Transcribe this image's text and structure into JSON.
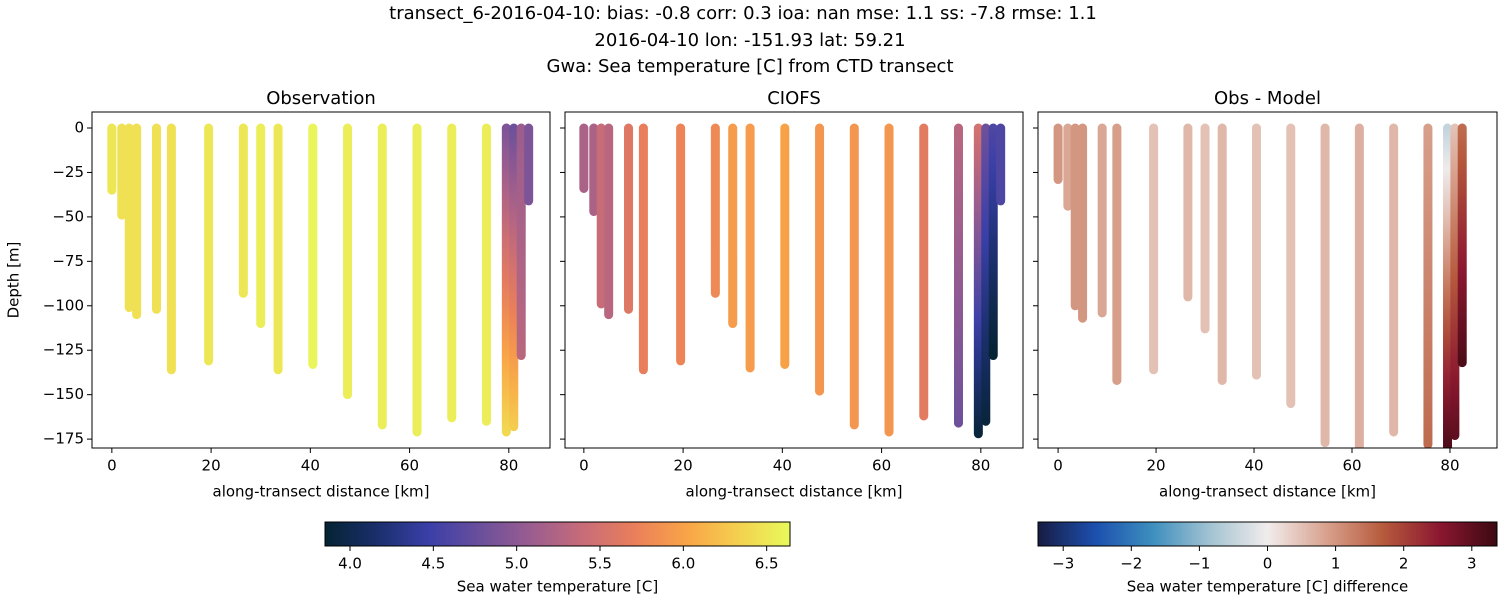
{
  "suptitle": [
    "transect_6-2016-04-10: bias: -0.8  corr: 0.3  ioa: nan  mse: 1.1  ss: -7.8  rmse: 1.1",
    "2016-04-10 lon: -151.93 lat: 59.21",
    "Gwa: Sea temperature [C] from CTD transect"
  ],
  "chart_data": [
    {
      "type": "cast",
      "title": "Observation",
      "xlabel": "along-transect distance [km]",
      "ylabel": "Depth [m]",
      "cmap": "thermal",
      "xlim": [
        -4,
        88.3
      ],
      "ylim": [
        -180,
        9
      ],
      "xticks": [
        0,
        20,
        40,
        60,
        80
      ],
      "yticks": [
        0,
        {
          "value": -25,
          "label": "−25"
        },
        {
          "value": -50,
          "label": "−50"
        },
        {
          "value": -75,
          "label": "−75"
        },
        {
          "value": -100,
          "label": "−100"
        },
        {
          "value": -125,
          "label": "−125"
        },
        {
          "value": -150,
          "label": "−150"
        },
        {
          "value": -175,
          "label": "−175"
        }
      ],
      "x": [
        0,
        2,
        3.5,
        5,
        9,
        12,
        19.5,
        26.5,
        30,
        33.5,
        40.5,
        47.5,
        54.5,
        61.5,
        68.5,
        75.5,
        79.5,
        81,
        82.5,
        84
      ],
      "depth": [
        -35,
        -49,
        -101,
        -105,
        -102,
        -136,
        -131,
        -93,
        -110,
        -136,
        -133,
        -150,
        -167,
        -171,
        -163,
        -165,
        -171,
        -168,
        -128,
        -41
      ],
      "top_values": [
        6.5,
        6.45,
        6.45,
        6.45,
        6.45,
        6.45,
        6.5,
        6.5,
        6.55,
        6.5,
        6.6,
        6.55,
        6.55,
        6.55,
        6.55,
        6.55,
        4.9,
        4.8,
        5.1,
        4.9
      ],
      "bottom_values": [
        6.5,
        6.45,
        6.45,
        6.45,
        6.45,
        6.45,
        6.5,
        6.5,
        6.55,
        6.5,
        6.6,
        6.55,
        6.55,
        6.55,
        6.55,
        6.55,
        6.4,
        6.3,
        5.3,
        4.9
      ]
    },
    {
      "type": "cast",
      "title": "CIOFS",
      "xlabel": "along-transect distance [km]",
      "cmap": "thermal",
      "xlim": [
        -3.8,
        88.5
      ],
      "ylim": [
        -180,
        9
      ],
      "xticks": [
        0,
        20,
        40,
        60,
        80
      ],
      "yticks": [
        0,
        -25,
        -50,
        -75,
        -100,
        -125,
        -150,
        -175
      ],
      "x": [
        0,
        2,
        3.5,
        5,
        9,
        12,
        19.5,
        26.5,
        30,
        33.5,
        40.5,
        47.5,
        54.5,
        61.5,
        68.5,
        75.5,
        79.5,
        81,
        82.5,
        84
      ],
      "depth": [
        -34,
        -47,
        -99,
        -105,
        -102,
        -136,
        -131,
        -93,
        -110,
        -135,
        -133,
        -148,
        -167,
        -171,
        -162,
        -166,
        -172,
        -165,
        -128,
        -41
      ],
      "top_values": [
        5.2,
        5.2,
        5.4,
        5.3,
        5.6,
        5.7,
        5.75,
        5.8,
        5.95,
        5.95,
        6.0,
        5.9,
        5.9,
        5.9,
        5.65,
        5.3,
        5.5,
        4.8,
        4.6,
        4.6
      ],
      "bottom_values": [
        5.2,
        5.2,
        5.4,
        5.3,
        5.6,
        5.7,
        5.75,
        5.8,
        5.95,
        5.95,
        6.0,
        5.9,
        5.9,
        5.9,
        5.65,
        4.8,
        3.9,
        3.9,
        3.85,
        4.6
      ]
    },
    {
      "type": "cast",
      "title": "Obs - Model",
      "xlabel": "along-transect distance [km]",
      "cmap": "balance",
      "xlim": [
        -4.1,
        89.6
      ],
      "ylim": [
        -180,
        9
      ],
      "xticks": [
        0,
        20,
        40,
        60,
        80
      ],
      "yticks": [
        0,
        -25,
        -50,
        -75,
        -100,
        -125,
        -150,
        -175
      ],
      "x": [
        0,
        2,
        3.5,
        5,
        9,
        12,
        19.5,
        26.5,
        30,
        33.5,
        40.5,
        47.5,
        54.5,
        61.5,
        68.5,
        75.5,
        79.5,
        81,
        82.5
      ],
      "depth": [
        -29,
        -44,
        -100,
        -107,
        -104,
        -142,
        -136,
        -95,
        -113,
        -142,
        -139,
        -155,
        -177,
        -185,
        -171,
        -178,
        -185,
        -173,
        -132
      ],
      "top_values": [
        1.0,
        0.8,
        1.0,
        1.0,
        0.8,
        0.9,
        0.5,
        0.6,
        0.5,
        0.6,
        0.5,
        0.5,
        0.6,
        0.7,
        0.6,
        0.9,
        -0.5,
        0.5,
        1.5
      ],
      "bottom_values": [
        1.0,
        0.8,
        1.0,
        1.0,
        0.8,
        0.9,
        0.5,
        0.6,
        0.5,
        0.6,
        0.5,
        0.5,
        0.6,
        0.7,
        0.6,
        1.5,
        3.3,
        3.0,
        3.2
      ]
    }
  ],
  "colorbars": [
    {
      "label": "Sea water temperature [C]",
      "cmap": "thermal",
      "vlim": [
        3.85,
        6.64
      ],
      "ticks": [
        {
          "value": 4,
          "label": "4.0"
        },
        {
          "value": 4.5,
          "label": "4.5"
        },
        {
          "value": 5,
          "label": "5.0"
        },
        {
          "value": 5.5,
          "label": "5.5"
        },
        {
          "value": 6,
          "label": "6.0"
        },
        {
          "value": 6.5,
          "label": "6.5"
        }
      ]
    },
    {
      "label": "Sea water temperature [C] difference",
      "cmap": "balance",
      "vlim": [
        -3.37,
        3.37
      ],
      "ticks": [
        {
          "value": -3,
          "label": "−3"
        },
        {
          "value": -2,
          "label": "−2"
        },
        {
          "value": -1,
          "label": "−1"
        },
        0,
        1,
        2,
        3
      ]
    }
  ],
  "cmaps": {
    "thermal": [
      "#042333",
      "#1a2f6b",
      "#3a3fa8",
      "#6a4f9c",
      "#9b5d8f",
      "#c86c78",
      "#ea7f5b",
      "#f9a447",
      "#f4d04f",
      "#e8fa5b"
    ],
    "balance": [
      "#181c43",
      "#1c4fae",
      "#3d8fbe",
      "#a3c3d2",
      "#f1ecec",
      "#d9a390",
      "#b75b3d",
      "#8b1730",
      "#3c0912"
    ]
  }
}
